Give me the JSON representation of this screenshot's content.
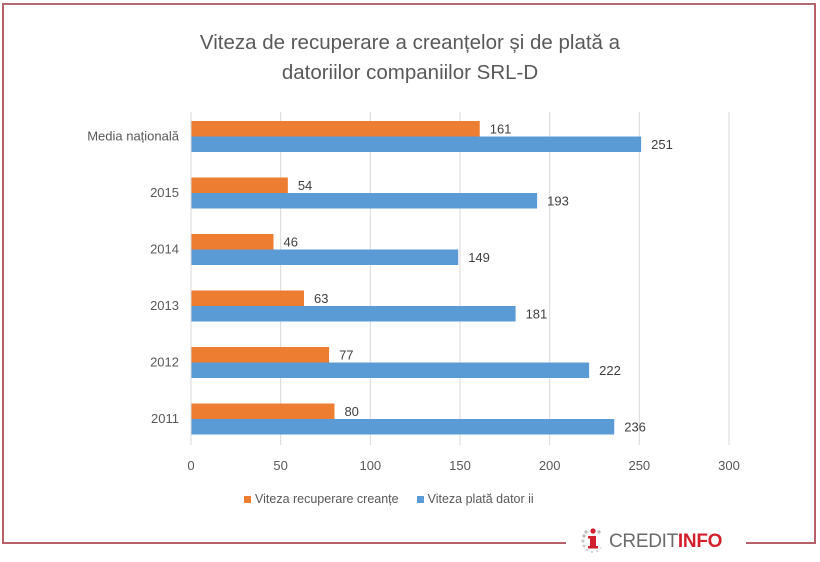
{
  "chart_data": {
    "type": "bar",
    "orientation": "horizontal",
    "title": "Viteza de recuperare a creanțelor și de plată a datoriilor companiilor SRL-D",
    "title_lines": [
      "Viteza de recuperare a creanțelor și de plată a",
      "datoriilor companiilor SRL-D"
    ],
    "categories": [
      "Media națională",
      "2015",
      "2014",
      "2013",
      "2012",
      "2011"
    ],
    "series": [
      {
        "name": "Viteza recuperare creanțe",
        "color": "#ED7D31",
        "values": [
          161,
          54,
          46,
          63,
          77,
          80
        ]
      },
      {
        "name": "Viteza plată datorii",
        "color": "#5B9BD5",
        "values": [
          251,
          193,
          149,
          181,
          222,
          236
        ]
      }
    ],
    "xlim": [
      0,
      300
    ],
    "xticks": [
      0,
      50,
      100,
      150,
      200,
      250,
      300
    ],
    "xlabel": "",
    "ylabel": "",
    "grid": true,
    "legend": "bottom",
    "data_labels": true
  },
  "legend_labels": [
    "Viteza recuperare creanțe",
    "Viteza plată dator ii"
  ],
  "logo": {
    "text_regular": "CREDIT",
    "text_bold": "INFO"
  }
}
